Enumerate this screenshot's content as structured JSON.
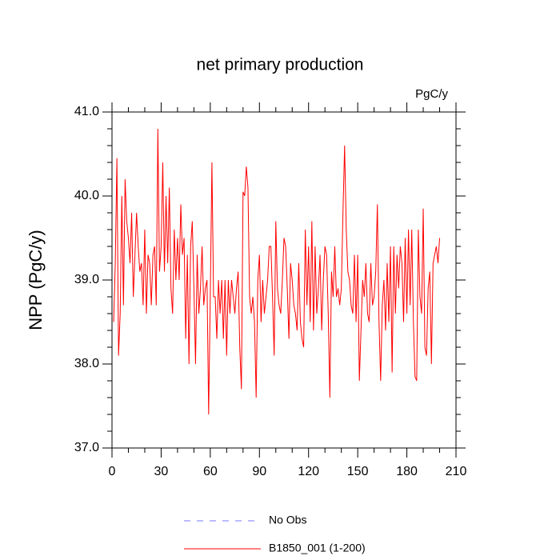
{
  "chart_data": {
    "type": "line",
    "title": "net primary production",
    "subtitle": "PgC/y",
    "y_label": "NPP  (PgC/y)",
    "x": [
      1,
      2,
      3,
      4,
      5,
      6,
      7,
      8,
      9,
      10,
      11,
      12,
      13,
      14,
      15,
      16,
      17,
      18,
      19,
      20,
      21,
      22,
      23,
      24,
      25,
      26,
      27,
      28,
      29,
      30,
      31,
      32,
      33,
      34,
      35,
      36,
      37,
      38,
      39,
      40,
      41,
      42,
      43,
      44,
      45,
      46,
      47,
      48,
      49,
      50,
      51,
      52,
      53,
      54,
      55,
      56,
      57,
      58,
      59,
      60,
      61,
      62,
      63,
      64,
      65,
      66,
      67,
      68,
      69,
      70,
      71,
      72,
      73,
      74,
      75,
      76,
      77,
      78,
      79,
      80,
      81,
      82,
      83,
      84,
      85,
      86,
      87,
      88,
      89,
      90,
      91,
      92,
      93,
      94,
      95,
      96,
      97,
      98,
      99,
      100,
      101,
      102,
      103,
      104,
      105,
      106,
      107,
      108,
      109,
      110,
      111,
      112,
      113,
      114,
      115,
      116,
      117,
      118,
      119,
      120,
      121,
      122,
      123,
      124,
      125,
      126,
      127,
      128,
      129,
      130,
      131,
      132,
      133,
      134,
      135,
      136,
      137,
      138,
      139,
      140,
      141,
      142,
      143,
      144,
      145,
      146,
      147,
      148,
      149,
      150,
      151,
      152,
      153,
      154,
      155,
      156,
      157,
      158,
      159,
      160,
      161,
      162,
      163,
      164,
      165,
      166,
      167,
      168,
      169,
      170,
      171,
      172,
      173,
      174,
      175,
      176,
      177,
      178,
      179,
      180,
      181,
      182,
      183,
      184,
      185,
      186,
      187,
      188,
      189,
      190,
      191,
      192,
      193,
      194,
      195,
      196,
      197,
      198,
      199,
      200
    ],
    "series": [
      {
        "name": "B1850_001 (1-200)",
        "color": "#ff0000",
        "values": [
          38.5,
          39.2,
          40.45,
          38.1,
          38.6,
          40.0,
          38.7,
          40.2,
          39.7,
          39.5,
          39.2,
          39.8,
          38.8,
          39.3,
          39.8,
          39.4,
          39.1,
          39.2,
          38.7,
          39.6,
          38.6,
          39.3,
          39.2,
          38.7,
          39.3,
          39.4,
          38.7,
          40.8,
          39.1,
          39.4,
          40.4,
          39.1,
          40.0,
          39.2,
          40.1,
          38.9,
          38.6,
          39.6,
          39.0,
          39.5,
          39.0,
          39.9,
          39.3,
          39.5,
          38.3,
          39.3,
          38.0,
          39.4,
          39.7,
          38.9,
          38.0,
          39.3,
          38.6,
          38.9,
          39.4,
          38.7,
          38.9,
          39.0,
          37.4,
          38.8,
          40.4,
          38.8,
          38.8,
          38.3,
          39.0,
          38.6,
          39.0,
          38.3,
          39.0,
          38.1,
          39.0,
          38.6,
          39.0,
          38.8,
          38.6,
          38.9,
          39.1,
          38.2,
          37.7,
          40.05,
          40.0,
          40.35,
          40.1,
          38.8,
          38.6,
          38.8,
          38.5,
          37.6,
          39.0,
          39.3,
          38.5,
          39.0,
          38.6,
          38.8,
          39.0,
          39.4,
          39.4,
          38.8,
          38.1,
          39.7,
          38.9,
          38.7,
          38.6,
          39.0,
          39.5,
          39.4,
          38.9,
          38.3,
          39.2,
          39.0,
          38.7,
          38.6,
          38.4,
          39.2,
          38.5,
          38.3,
          38.2,
          39.6,
          38.7,
          39.4,
          38.5,
          39.7,
          38.4,
          39.4,
          38.6,
          38.9,
          39.3,
          38.4,
          39.0,
          39.4,
          39.3,
          38.6,
          37.6,
          39.1,
          38.8,
          39.4,
          38.8,
          38.9,
          38.7,
          38.9,
          39.8,
          40.6,
          39.6,
          39.1,
          39.0,
          38.7,
          38.6,
          39.3,
          38.5,
          39.3,
          37.8,
          38.4,
          39.0,
          38.8,
          39.2,
          38.6,
          38.5,
          39.2,
          38.7,
          38.8,
          39.1,
          39.9,
          38.5,
          37.8,
          38.7,
          39.0,
          38.4,
          39.2,
          38.5,
          39.4,
          37.9,
          39.4,
          38.6,
          39.3,
          38.9,
          39.4,
          39.2,
          38.5,
          39.5,
          38.6,
          39.6,
          38.7,
          39.6,
          38.5,
          37.85,
          37.8,
          39.6,
          38.8,
          38.6,
          39.85,
          38.2,
          38.1,
          38.9,
          39.1,
          38.0,
          39.2,
          39.3,
          39.4,
          39.2,
          39.5
        ]
      }
    ],
    "reference": {
      "name": "No Obs",
      "color": "#7777ff",
      "dash": true
    },
    "xlim": [
      0,
      210
    ],
    "xticks": [
      0,
      30,
      60,
      90,
      120,
      150,
      180,
      210
    ],
    "xminorticks": [
      10,
      20,
      40,
      50,
      70,
      80,
      100,
      110,
      130,
      140,
      160,
      170,
      190,
      200
    ],
    "ylim": [
      37,
      41
    ],
    "yticks": [
      {
        "value": 37,
        "label": "37.0"
      },
      {
        "value": 38,
        "label": "38.0"
      },
      {
        "value": 39,
        "label": "39.0"
      },
      {
        "value": 40,
        "label": "40.0"
      },
      {
        "value": 41,
        "label": "41.0"
      }
    ],
    "yminorticks": [
      37.2,
      37.4,
      37.6,
      37.8,
      38.2,
      38.4,
      38.6,
      38.8,
      39.2,
      39.4,
      39.6,
      39.8,
      40.2,
      40.4,
      40.6,
      40.8
    ]
  }
}
